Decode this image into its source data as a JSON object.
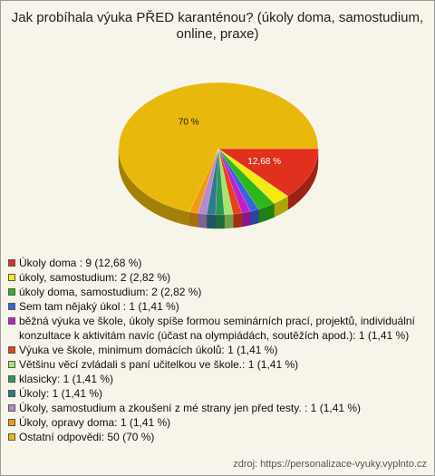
{
  "chart_data": {
    "type": "pie",
    "title": "Jak probíhala výuka PŘED karanténou? (úkoly doma, samostudium, online, praxe)",
    "categories": [
      "Úkoly doma : 9 (12,68 %)",
      "úkoly, samostudium: 2 (2,82 %)",
      "úkoly doma, samostudium: 2 (2,82 %)",
      "Sem tam nějaký úkol : 1 (1,41 %)",
      "běžná výuka ve škole, úkoly spíše formou seminárních prací, projektů, individuální konzultace k aktivitám navíc (účast na olympiádách, soutěžích apod.): 1 (1,41 %)",
      "Výuka ve škole, minimum domácích úkolů: 1 (1,41 %)",
      "Většinu věcí zvládali s paní učitelkou ve škole.: 1 (1,41 %)",
      "klasicky: 1 (1,41 %)",
      "Úkoly: 1 (1,41 %)",
      "Úkoly, samostudium a zkoušení z mé strany jen před testy. : 1 (1,41 %)",
      "Úkoly, opravy doma: 1 (1,41 %)",
      "Ostatní odpovědi: 50 (70 %)"
    ],
    "values": [
      12.68,
      2.82,
      2.82,
      1.41,
      1.41,
      1.41,
      1.41,
      1.41,
      1.41,
      1.41,
      1.41,
      70
    ],
    "value_labels": [
      "12,68 %",
      null,
      null,
      null,
      null,
      null,
      null,
      null,
      null,
      null,
      null,
      "70 %"
    ],
    "colors": [
      "#e0301e",
      "#f5ea14",
      "#2cb81c",
      "#3a62e0",
      "#c21fc8",
      "#e8401a",
      "#a6e46a",
      "#2a9a52",
      "#2f7a8e",
      "#b58ad0",
      "#f29a12",
      "#e9b80c"
    ],
    "source": "zdroj: https://personalizace-vyuky.vyplnto.cz"
  }
}
